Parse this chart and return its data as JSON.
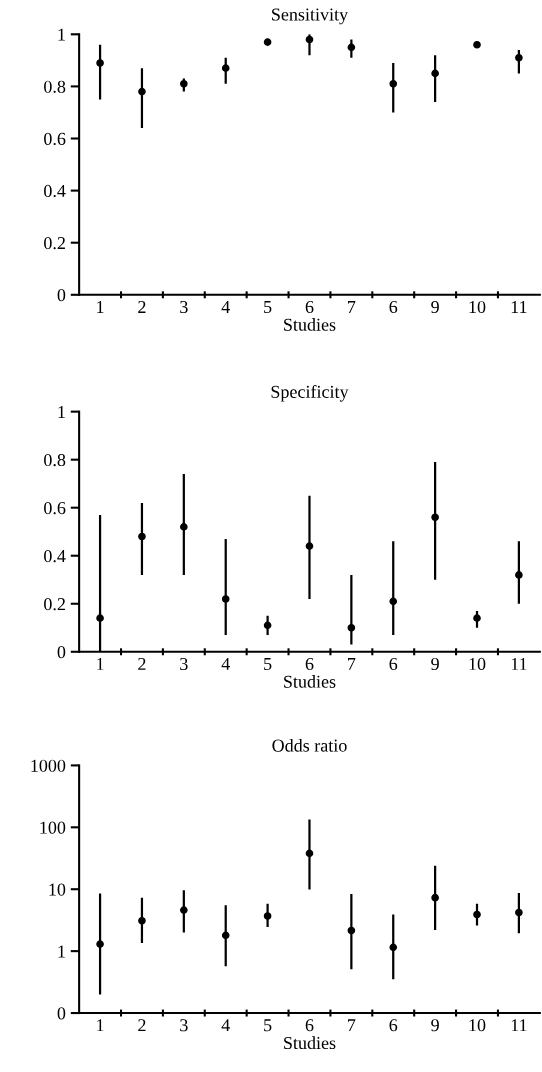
{
  "chart_data": [
    {
      "type": "scatter",
      "title": "Sensitivity",
      "xlabel": "Studies",
      "categories": [
        "1",
        "2",
        "3",
        "4",
        "5",
        "6",
        "7",
        "6",
        "9",
        "10",
        "11"
      ],
      "color": "#000000",
      "marker": "circle",
      "values": [
        0.89,
        0.78,
        0.81,
        0.87,
        0.97,
        0.98,
        0.95,
        0.81,
        0.85,
        0.96,
        0.91
      ],
      "errors": [
        [
          0.75,
          0.96
        ],
        [
          0.64,
          0.87
        ],
        [
          0.78,
          0.83
        ],
        [
          0.81,
          0.91
        ],
        null,
        [
          0.92,
          1.0
        ],
        [
          0.91,
          0.98
        ],
        [
          0.7,
          0.89
        ],
        [
          0.74,
          0.92
        ],
        null,
        [
          0.85,
          0.94
        ]
      ],
      "ylim": [
        0,
        1
      ],
      "yticks": [
        0,
        0.2,
        0.4,
        0.6,
        0.8,
        1
      ]
    },
    {
      "type": "scatter",
      "title": "Specificity",
      "xlabel": "Studies",
      "categories": [
        "1",
        "2",
        "3",
        "4",
        "5",
        "6",
        "7",
        "6",
        "9",
        "10",
        "11"
      ],
      "color": "#000000",
      "marker": "circle",
      "values": [
        0.14,
        0.48,
        0.52,
        0.22,
        0.11,
        0.44,
        0.1,
        0.21,
        0.56,
        0.14,
        0.32
      ],
      "errors": [
        [
          0,
          0.57
        ],
        [
          0.32,
          0.62
        ],
        [
          0.32,
          0.74
        ],
        [
          0.07,
          0.47
        ],
        [
          0.07,
          0.15
        ],
        [
          0.22,
          0.65
        ],
        [
          0.03,
          0.32
        ],
        [
          0.07,
          0.46
        ],
        [
          0.3,
          0.79
        ],
        [
          0.1,
          0.17
        ],
        [
          0.2,
          0.46
        ]
      ],
      "ylim": [
        0,
        1
      ],
      "yticks": [
        0,
        0.2,
        0.4,
        0.6,
        0.8,
        1
      ]
    },
    {
      "type": "scatter",
      "title": "Odds ratio",
      "xlabel": "Studies",
      "categories": [
        "1",
        "2",
        "3",
        "4",
        "5",
        "6",
        "7",
        "6",
        "9",
        "10",
        "11"
      ],
      "color": "#000000",
      "marker": "circle",
      "log": true,
      "values": [
        1.3,
        3.1,
        4.6,
        1.8,
        3.7,
        38,
        2.15,
        1.15,
        7.3,
        3.9,
        4.2
      ],
      "errors": [
        [
          0.2,
          8.5
        ],
        [
          1.35,
          7.3
        ],
        [
          2.0,
          9.6
        ],
        [
          0.57,
          5.5
        ],
        [
          2.45,
          5.8
        ],
        [
          9.9,
          134
        ],
        [
          0.51,
          8.4
        ],
        [
          0.35,
          3.9
        ],
        [
          2.2,
          24
        ],
        [
          2.6,
          5.8
        ],
        [
          1.95,
          8.7
        ]
      ],
      "ylim": [
        0.1,
        1000
      ],
      "yticks": [
        {
          "value": 0.1,
          "label": "0"
        },
        1,
        10,
        100,
        1000
      ]
    }
  ]
}
